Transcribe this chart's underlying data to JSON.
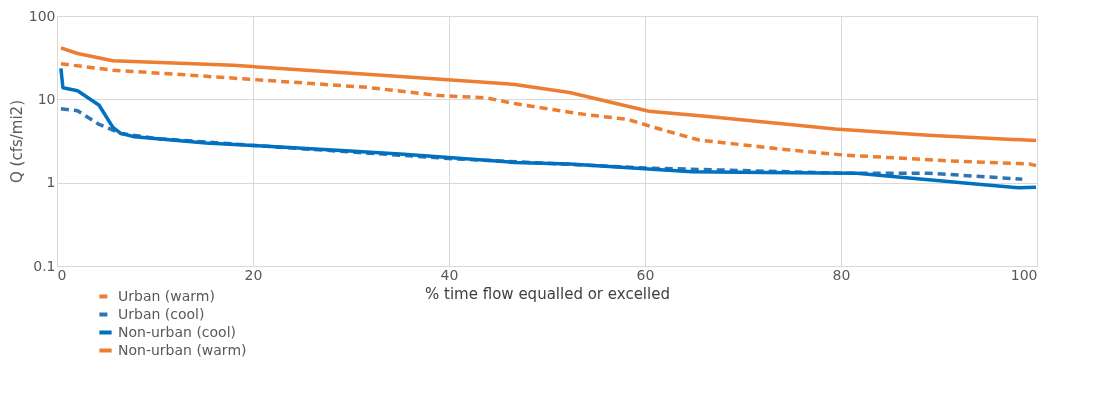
{
  "chart_data": {
    "type": "line",
    "xlabel": "% time flow equalled or excelled",
    "ylabel": "Q (cfs/mi2)",
    "log": "y",
    "xlim": [
      0,
      100
    ],
    "xticks": [
      0,
      20,
      40,
      60,
      80,
      100
    ],
    "ylim": [
      0.1,
      100
    ],
    "yticks": [
      0.1,
      1,
      10,
      100
    ],
    "grid": true,
    "legend": "bottom left",
    "marker": "none",
    "series": [
      {
        "name": "Urban (warm)",
        "color": "#ed7d31",
        "line_style": "dashed",
        "x": [
          0.4,
          5.7,
          13,
          22.6,
          31.7,
          39,
          43.8,
          46.7,
          53.8,
          58.2,
          61.5,
          65.5,
          74.3,
          80.2,
          90.8,
          99.2,
          99.9
        ],
        "values": [
          26.7,
          22.4,
          19.7,
          16.5,
          13.9,
          11.1,
          10.4,
          8.9,
          6.6,
          5.75,
          4.4,
          3.25,
          2.5,
          2.15,
          1.83,
          1.68,
          1.6
        ]
      },
      {
        "name": "Urban (cool)",
        "color": "#2e75b6",
        "line_style": "dashed",
        "x": [
          0.4,
          2.1,
          4.3,
          6.5,
          10,
          20,
          40,
          60,
          80,
          89,
          98.5
        ],
        "values": [
          7.7,
          7.3,
          5,
          3.9,
          3.4,
          2.8,
          1.95,
          1.5,
          1.3,
          1.3,
          1.1
        ]
      },
      {
        "name": "Non-urban (cool)",
        "color": "#0070c0",
        "line_style": "solid",
        "x": [
          0.4,
          0.6,
          2.1,
          4.3,
          5.7,
          6.5,
          7.9,
          15.2,
          20,
          29.9,
          35.4,
          46.7,
          52.3,
          64.8,
          81.6,
          92.6,
          98.1,
          99.9
        ],
        "values": [
          23.5,
          13.8,
          12.7,
          8.5,
          4.6,
          3.9,
          3.55,
          3,
          2.8,
          2.4,
          2.2,
          1.75,
          1.68,
          1.35,
          1.3,
          0.99,
          0.87,
          0.88
        ]
      },
      {
        "name": "Non-urban (warm)",
        "color": "#ed7d31",
        "line_style": "solid",
        "x": [
          0.4,
          2.1,
          5.7,
          18,
          32.4,
          46.7,
          52.3,
          60.4,
          65.9,
          79.4,
          88.9,
          99.9
        ],
        "values": [
          41.5,
          35.5,
          29,
          25.6,
          19.7,
          15.1,
          12.1,
          7.2,
          6.3,
          4.4,
          3.7,
          3.2
        ]
      }
    ]
  }
}
